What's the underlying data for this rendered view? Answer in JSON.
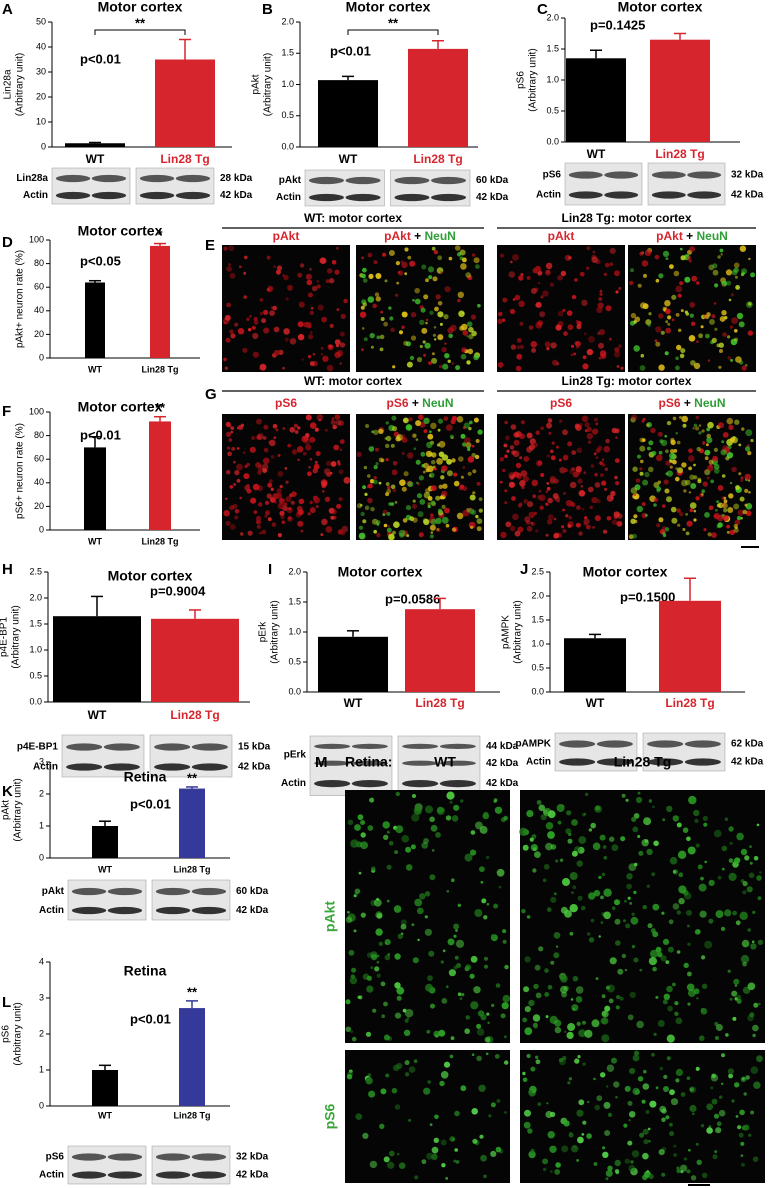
{
  "chart_data": [
    {
      "panel": "A",
      "type": "bar",
      "title": "Motor cortex",
      "ylabel": [
        "Lin28a",
        "(Arbitrary unit)"
      ],
      "categories": [
        "WT",
        "Lin28 Tg"
      ],
      "category_colors": [
        "#000000",
        "#d7252d"
      ],
      "values": [
        1.5,
        35
      ],
      "errors": [
        0.3,
        8
      ],
      "colors": [
        "#000000",
        "#d7252d"
      ],
      "ylim": [
        0,
        50
      ],
      "yticks": [
        0,
        10,
        20,
        30,
        40,
        50
      ],
      "annotation": "p<0.01",
      "significance": "**",
      "bracket": true,
      "blot": [
        {
          "label": "Lin28a",
          "kda": [
            "28 kDa"
          ]
        },
        {
          "label": "Actin",
          "kda": [
            "42 kDa"
          ]
        }
      ]
    },
    {
      "panel": "B",
      "type": "bar",
      "title": "Motor cortex",
      "ylabel": [
        "pAkt",
        "(Arbitrary unit)"
      ],
      "categories": [
        "WT",
        "Lin28 Tg"
      ],
      "category_colors": [
        "#000000",
        "#d7252d"
      ],
      "values": [
        1.07,
        1.57
      ],
      "errors": [
        0.06,
        0.13
      ],
      "colors": [
        "#000000",
        "#d7252d"
      ],
      "ylim": [
        0,
        2
      ],
      "yticks": [
        {
          "value": 0,
          "label": "0.0"
        },
        0.5,
        {
          "value": 1,
          "label": "1.0"
        },
        1.5,
        {
          "value": 2,
          "label": "2.0"
        }
      ],
      "annotation": "p<0.01",
      "significance": "**",
      "bracket": true,
      "blot": [
        {
          "label": "pAkt",
          "kda": [
            "60 kDa"
          ]
        },
        {
          "label": "Actin",
          "kda": [
            "42 kDa"
          ]
        }
      ]
    },
    {
      "panel": "C",
      "type": "bar",
      "title": "Motor cortex",
      "ylabel": [
        "pS6",
        "(Arbitrary unit)"
      ],
      "categories": [
        "WT",
        "Lin28 Tg"
      ],
      "category_colors": [
        "#000000",
        "#d7252d"
      ],
      "values": [
        1.35,
        1.65
      ],
      "errors": [
        0.13,
        0.1
      ],
      "colors": [
        "#000000",
        "#d7252d"
      ],
      "ylim": [
        0,
        2
      ],
      "yticks": [
        {
          "value": 0,
          "label": "0.0"
        },
        0.5,
        {
          "value": 1,
          "label": "1.0"
        },
        1.5,
        {
          "value": 2,
          "label": "2.0"
        }
      ],
      "annotation": "p=0.1425",
      "blot": [
        {
          "label": "pS6",
          "kda": [
            "32 kDa"
          ]
        },
        {
          "label": "Actin",
          "kda": [
            "42 kDa"
          ]
        }
      ]
    },
    {
      "panel": "D",
      "type": "bar",
      "title": "Motor cortex",
      "ylabel": [
        "pAkt+ neuron rate (%)"
      ],
      "categories": [
        "WT",
        "Lin28 Tg"
      ],
      "category_colors": [
        "#000000",
        "#000000"
      ],
      "values": [
        64,
        95
      ],
      "errors": [
        1.5,
        2
      ],
      "colors": [
        "#000000",
        "#d7252d"
      ],
      "ylim": [
        0,
        100
      ],
      "yticks": [
        0,
        20,
        40,
        60,
        80,
        100
      ],
      "annotation": "p<0.05",
      "significance": "*"
    },
    {
      "panel": "F",
      "type": "bar",
      "title": "Motor cortex",
      "ylabel": [
        "pS6+ neuron rate (%)"
      ],
      "categories": [
        "WT",
        "Lin28 Tg"
      ],
      "category_colors": [
        "#000000",
        "#000000"
      ],
      "values": [
        70,
        92
      ],
      "errors": [
        9,
        4
      ],
      "colors": [
        "#000000",
        "#d7252d"
      ],
      "ylim": [
        0,
        100
      ],
      "yticks": [
        0,
        20,
        40,
        60,
        80,
        100
      ],
      "annotation": "p<0.01",
      "significance": "**"
    },
    {
      "panel": "H",
      "type": "bar",
      "title": "Motor cortex",
      "ylabel": [
        "p4E-BP1",
        "(Arbitrary unit)"
      ],
      "categories": [
        "WT",
        "Lin28 Tg"
      ],
      "category_colors": [
        "#000000",
        "#d7252d"
      ],
      "values": [
        1.65,
        1.6
      ],
      "errors": [
        0.38,
        0.17
      ],
      "colors": [
        "#000000",
        "#d7252d"
      ],
      "ylim": [
        0,
        2.5
      ],
      "yticks": [
        {
          "value": 0,
          "label": "0.0"
        },
        0.5,
        {
          "value": 1,
          "label": "1.0"
        },
        1.5,
        {
          "value": 2,
          "label": "2.0"
        },
        2.5
      ],
      "annotation": "p=0.9004",
      "blot": [
        {
          "label": "p4E-BP1",
          "kda": [
            "15 kDa"
          ]
        },
        {
          "label": "Actin",
          "kda": [
            "42 kDa"
          ]
        }
      ]
    },
    {
      "panel": "I",
      "type": "bar",
      "title": "Motor cortex",
      "ylabel": [
        "pErk",
        "(Arbitrary unit)"
      ],
      "categories": [
        "WT",
        "Lin28 Tg"
      ],
      "category_colors": [
        "#000000",
        "#d7252d"
      ],
      "values": [
        0.92,
        1.38
      ],
      "errors": [
        0.1,
        0.18
      ],
      "colors": [
        "#000000",
        "#d7252d"
      ],
      "ylim": [
        0,
        2
      ],
      "yticks": [
        {
          "value": 0,
          "label": "0.0"
        },
        0.5,
        {
          "value": 1,
          "label": "1.0"
        },
        1.5,
        {
          "value": 2,
          "label": "2.0"
        }
      ],
      "annotation": "p=0.0586",
      "blot": [
        {
          "label": "pErk",
          "kda": [
            "44 kDa",
            "42 kDa"
          ]
        },
        {
          "label": "Actin",
          "kda": [
            "42 kDa"
          ]
        }
      ]
    },
    {
      "panel": "J",
      "type": "bar",
      "title": "Motor cortex",
      "ylabel": [
        "pAMPK",
        "(Arbitrary unit)"
      ],
      "categories": [
        "WT",
        "Lin28 Tg"
      ],
      "category_colors": [
        "#000000",
        "#d7252d"
      ],
      "values": [
        1.12,
        1.9
      ],
      "errors": [
        0.08,
        0.47
      ],
      "colors": [
        "#000000",
        "#d7252d"
      ],
      "ylim": [
        0,
        2.5
      ],
      "yticks": [
        {
          "value": 0,
          "label": "0.0"
        },
        0.5,
        {
          "value": 1,
          "label": "1.0"
        },
        1.5,
        {
          "value": 2,
          "label": "2.0"
        },
        2.5
      ],
      "annotation": "p=0.1500",
      "blot": [
        {
          "label": "pAMPK",
          "kda": [
            "62 kDa"
          ]
        },
        {
          "label": "Actin",
          "kda": [
            "42 kDa"
          ]
        }
      ]
    },
    {
      "panel": "K",
      "type": "bar",
      "title": "Retina",
      "ylabel": [
        "pAkt",
        "(Arbitrary unit)"
      ],
      "categories": [
        "WT",
        "Lin28 Tg"
      ],
      "category_colors": [
        "#000000",
        "#000000"
      ],
      "values": [
        1,
        2.17
      ],
      "errors": [
        0.15,
        0.05
      ],
      "colors": [
        "#000000",
        "#35399a"
      ],
      "ylim": [
        0,
        3
      ],
      "yticks": [
        0,
        1,
        2,
        3
      ],
      "annotation": "p<0.01",
      "significance": "**",
      "blot": [
        {
          "label": "pAkt",
          "kda": [
            "60 kDa"
          ]
        },
        {
          "label": "Actin",
          "kda": [
            "42 kDa"
          ]
        }
      ]
    },
    {
      "panel": "L",
      "type": "bar",
      "title": "Retina",
      "ylabel": [
        "pS6",
        "(Arbitrary unit)"
      ],
      "categories": [
        "WT",
        "Lin28 Tg"
      ],
      "category_colors": [
        "#000000",
        "#000000"
      ],
      "values": [
        1,
        2.72
      ],
      "errors": [
        0.13,
        0.2
      ],
      "colors": [
        "#000000",
        "#35399a"
      ],
      "ylim": [
        0,
        4
      ],
      "yticks": [
        0,
        1,
        2,
        3,
        4
      ],
      "annotation": "p<0.01",
      "significance": "**",
      "blot": [
        {
          "label": "pS6",
          "kda": [
            "32 kDa"
          ]
        },
        {
          "label": "Actin",
          "kda": [
            "42 kDa"
          ]
        }
      ]
    }
  ],
  "image_panels": [
    {
      "panel": "E",
      "groups": [
        {
          "title": "WT: motor cortex",
          "images": [
            [
              "pAkt"
            ],
            [
              "pAkt",
              "+",
              "NeuN"
            ]
          ]
        },
        {
          "title": "Lin28 Tg: motor cortex",
          "images": [
            [
              "pAkt"
            ],
            [
              "pAkt",
              "+",
              "NeuN"
            ]
          ]
        }
      ]
    },
    {
      "panel": "G",
      "groups": [
        {
          "title": "WT: motor cortex",
          "images": [
            [
              "pS6"
            ],
            [
              "pS6",
              "+",
              "NeuN"
            ]
          ]
        },
        {
          "title": "Lin28 Tg: motor cortex",
          "images": [
            [
              "pS6"
            ],
            [
              "pS6",
              "+",
              "NeuN"
            ]
          ]
        }
      ]
    },
    {
      "panel": "M",
      "header": "Retina:",
      "columns": [
        "WT",
        "Lin28 Tg"
      ],
      "rows": [
        "pAkt",
        "pS6"
      ]
    }
  ]
}
